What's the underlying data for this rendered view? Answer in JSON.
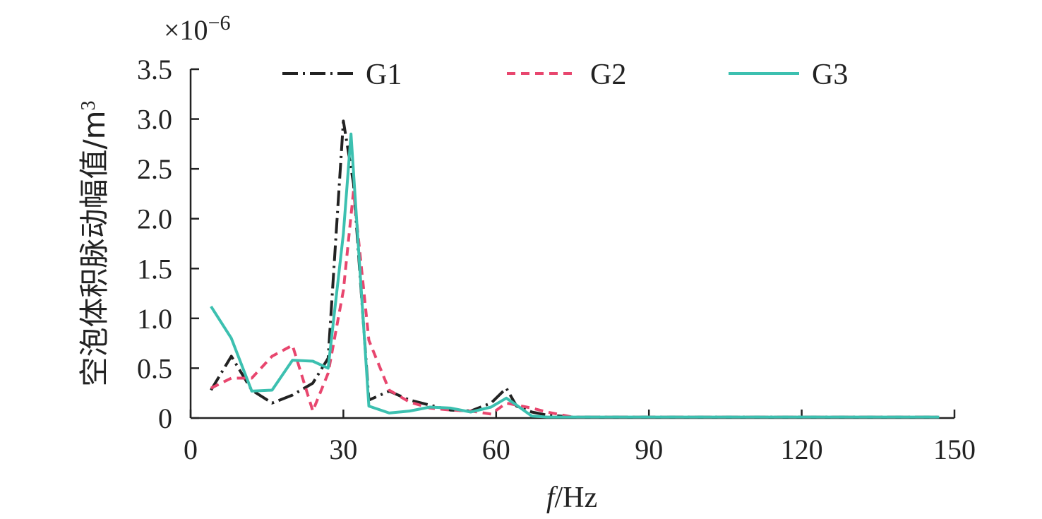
{
  "chart_data": {
    "type": "line",
    "xlabel_italic": "f",
    "xlabel_unit": "/Hz",
    "ylabel_text": "空泡体积脉动幅值/m",
    "ylabel_sup": "3",
    "y_multiplier_base": "×10",
    "y_multiplier_exp": "−6",
    "xlim": [
      0,
      150
    ],
    "ylim": [
      0,
      3.5
    ],
    "x_ticks": [
      0,
      30,
      60,
      90,
      120,
      150
    ],
    "x_tick_labels": [
      "0",
      "30",
      "60",
      "90",
      "120",
      "150"
    ],
    "y_ticks": [
      0,
      0.5,
      1.0,
      1.5,
      2.0,
      2.5,
      3.0,
      3.5
    ],
    "y_tick_labels": [
      "0",
      "0.5",
      "1.0",
      "1.5",
      "2.0",
      "2.5",
      "3.0",
      "3.5"
    ],
    "grid": false,
    "legend_position": "top",
    "series": [
      {
        "name": "G1",
        "color": "#222222",
        "dash": "dashdot",
        "x": [
          4,
          8,
          12,
          16,
          20,
          24,
          27,
          30,
          32,
          35,
          39,
          43,
          47,
          51,
          55,
          59,
          62,
          64,
          67,
          70,
          75,
          80,
          90,
          100,
          110,
          120,
          130,
          140,
          147
        ],
        "y": [
          0.28,
          0.62,
          0.28,
          0.15,
          0.23,
          0.35,
          0.6,
          2.98,
          2.35,
          0.18,
          0.27,
          0.18,
          0.13,
          0.08,
          0.07,
          0.15,
          0.3,
          0.12,
          0.06,
          0.03,
          0.01,
          0.01,
          0.01,
          0.01,
          0.01,
          0.01,
          0.01,
          0.01,
          0.01
        ]
      },
      {
        "name": "G2",
        "color": "#e8466e",
        "dash": "dash",
        "x": [
          4,
          8,
          12,
          16,
          20,
          24,
          27,
          30,
          32,
          35,
          39,
          43,
          47,
          51,
          55,
          59,
          62,
          64,
          67,
          70,
          75,
          80,
          90,
          100,
          110,
          120,
          130,
          140,
          147
        ],
        "y": [
          0.3,
          0.4,
          0.4,
          0.62,
          0.73,
          0.07,
          0.45,
          1.28,
          2.28,
          0.78,
          0.28,
          0.16,
          0.1,
          0.08,
          0.07,
          0.04,
          0.15,
          0.13,
          0.1,
          0.06,
          0.01,
          0.01,
          0.01,
          0.01,
          0.01,
          0.01,
          0.01,
          0.01,
          0.01
        ]
      },
      {
        "name": "G3",
        "color": "#3cc0b0",
        "dash": "solid",
        "x": [
          4,
          8,
          12,
          16,
          20,
          24,
          27,
          30,
          31.5,
          35,
          39,
          43,
          47,
          51,
          55,
          59,
          62,
          64,
          67,
          70,
          75,
          80,
          90,
          100,
          110,
          120,
          130,
          140,
          147
        ],
        "y": [
          1.12,
          0.8,
          0.27,
          0.28,
          0.58,
          0.57,
          0.5,
          1.85,
          2.85,
          0.12,
          0.05,
          0.07,
          0.11,
          0.1,
          0.06,
          0.11,
          0.2,
          0.13,
          0.02,
          0.01,
          0.01,
          0.01,
          0.01,
          0.01,
          0.01,
          0.01,
          0.01,
          0.01,
          0.01
        ]
      }
    ]
  }
}
